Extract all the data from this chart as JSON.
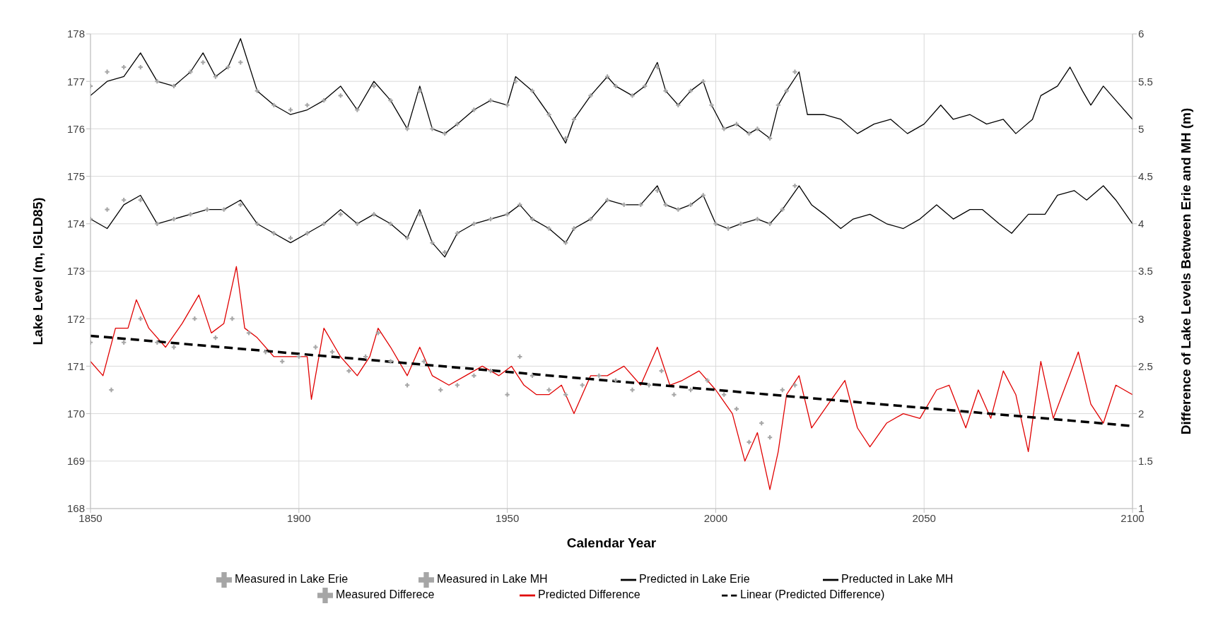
{
  "chart_data": {
    "type": "line",
    "xlabel": "Calendar Year",
    "ylabel": "Lake Level (m, IGLD85)",
    "y2label": "Difference of Lake Levels Between Erie and MH (m)",
    "xlim": [
      1850,
      2100
    ],
    "xticks": [
      1850,
      1900,
      1950,
      2000,
      2050,
      2100
    ],
    "ylim": [
      168,
      178
    ],
    "yticks": [
      168,
      169,
      170,
      171,
      172,
      173,
      174,
      175,
      176,
      177,
      178
    ],
    "y2lim": [
      1,
      6
    ],
    "y2ticks": [
      1,
      1.5,
      2,
      2.5,
      3,
      3.5,
      4,
      4.5,
      5,
      5.5,
      6
    ],
    "grid": true,
    "legend": "bottom",
    "series": [
      {
        "name": "Measured in Lake Erie",
        "type": "scatter",
        "marker": "cross",
        "color": "#a6a6a6",
        "x": [
          1850,
          1854,
          1858,
          1862,
          1866,
          1870,
          1874,
          1878,
          1882,
          1886,
          1890,
          1894,
          1898,
          1902,
          1906,
          1910,
          1914,
          1918,
          1922,
          1926,
          1929,
          1932,
          1935,
          1938,
          1942,
          1946,
          1950,
          1953,
          1956,
          1960,
          1964,
          1966,
          1970,
          1974,
          1978,
          1982,
          1986,
          1988,
          1991,
          1994,
          1997,
          2000,
          2003,
          2006,
          2010,
          2013,
          2016,
          2019
        ],
        "values": [
          174.1,
          174.3,
          174.5,
          174.5,
          174.0,
          174.1,
          174.2,
          174.3,
          174.3,
          174.4,
          174.0,
          173.8,
          173.7,
          173.8,
          174.0,
          174.2,
          174.0,
          174.2,
          174.0,
          173.7,
          174.2,
          173.6,
          173.4,
          173.8,
          174.0,
          174.1,
          174.2,
          174.4,
          174.1,
          173.9,
          173.6,
          173.9,
          174.1,
          174.5,
          174.4,
          174.4,
          174.7,
          174.4,
          174.3,
          174.4,
          174.6,
          174.0,
          173.9,
          174.0,
          174.1,
          174.0,
          174.3,
          174.8
        ]
      },
      {
        "name": "Measured in Lake MH",
        "type": "scatter",
        "marker": "cross",
        "color": "#a6a6a6",
        "x": [
          1850,
          1854,
          1858,
          1862,
          1866,
          1870,
          1874,
          1877,
          1880,
          1883,
          1886,
          1890,
          1894,
          1898,
          1902,
          1906,
          1910,
          1914,
          1918,
          1922,
          1926,
          1929,
          1932,
          1935,
          1938,
          1942,
          1946,
          1950,
          1952,
          1956,
          1960,
          1964,
          1966,
          1970,
          1974,
          1976,
          1980,
          1983,
          1986,
          1988,
          1991,
          1994,
          1997,
          1999,
          2002,
          2005,
          2008,
          2010,
          2013,
          2015,
          2017,
          2019
        ],
        "values": [
          176.9,
          177.2,
          177.3,
          177.3,
          177.0,
          176.9,
          177.2,
          177.4,
          177.1,
          177.3,
          177.4,
          176.8,
          176.5,
          176.4,
          176.5,
          176.6,
          176.7,
          176.4,
          176.9,
          176.6,
          176.0,
          176.8,
          176.0,
          175.9,
          176.1,
          176.4,
          176.6,
          176.5,
          177.0,
          176.8,
          176.3,
          175.8,
          176.2,
          176.7,
          177.1,
          176.9,
          176.7,
          176.9,
          177.3,
          176.8,
          176.5,
          176.8,
          177.0,
          176.5,
          176.0,
          176.1,
          175.9,
          176.0,
          175.8,
          176.5,
          176.8,
          177.2
        ]
      },
      {
        "name": "Predicted in Lake Erie",
        "color": "#000000",
        "x": [
          1850,
          1854,
          1858,
          1862,
          1866,
          1870,
          1874,
          1878,
          1882,
          1886,
          1890,
          1894,
          1898,
          1902,
          1906,
          1910,
          1914,
          1918,
          1922,
          1926,
          1929,
          1932,
          1935,
          1938,
          1942,
          1946,
          1950,
          1953,
          1956,
          1960,
          1964,
          1966,
          1970,
          1974,
          1978,
          1982,
          1986,
          1988,
          1991,
          1994,
          1997,
          2000,
          2003,
          2006,
          2010,
          2013,
          2016,
          2020,
          2023,
          2026,
          2030,
          2033,
          2037,
          2041,
          2045,
          2049,
          2053,
          2057,
          2061,
          2064,
          2068,
          2071,
          2075,
          2079,
          2082,
          2086,
          2089,
          2093,
          2096,
          2100
        ],
        "values": [
          174.1,
          173.9,
          174.4,
          174.6,
          174.0,
          174.1,
          174.2,
          174.3,
          174.3,
          174.5,
          174.0,
          173.8,
          173.6,
          173.8,
          174.0,
          174.3,
          174.0,
          174.2,
          174.0,
          173.7,
          174.3,
          173.6,
          173.3,
          173.8,
          174.0,
          174.1,
          174.2,
          174.4,
          174.1,
          173.9,
          173.6,
          173.9,
          174.1,
          174.5,
          174.4,
          174.4,
          174.8,
          174.4,
          174.3,
          174.4,
          174.6,
          174.0,
          173.9,
          174.0,
          174.1,
          174.0,
          174.3,
          174.8,
          174.4,
          174.2,
          173.9,
          174.1,
          174.2,
          174.0,
          173.9,
          174.1,
          174.4,
          174.1,
          174.3,
          174.3,
          174.0,
          173.8,
          174.2,
          174.2,
          174.6,
          174.7,
          174.5,
          174.8,
          174.5,
          174.0
        ]
      },
      {
        "name": "Preducted in Lake MH",
        "color": "#000000",
        "x": [
          1850,
          1854,
          1858,
          1862,
          1866,
          1870,
          1874,
          1877,
          1880,
          1883,
          1886,
          1890,
          1894,
          1898,
          1902,
          1906,
          1910,
          1914,
          1918,
          1922,
          1926,
          1929,
          1932,
          1935,
          1938,
          1942,
          1946,
          1950,
          1952,
          1956,
          1960,
          1964,
          1966,
          1970,
          1974,
          1976,
          1980,
          1983,
          1986,
          1988,
          1991,
          1994,
          1997,
          1999,
          2002,
          2005,
          2008,
          2010,
          2013,
          2015,
          2017,
          2020,
          2022,
          2026,
          2030,
          2034,
          2038,
          2042,
          2046,
          2050,
          2054,
          2057,
          2061,
          2065,
          2069,
          2072,
          2076,
          2078,
          2082,
          2085,
          2088,
          2090,
          2093,
          2096,
          2100
        ],
        "values": [
          176.7,
          177.0,
          177.1,
          177.6,
          177.0,
          176.9,
          177.2,
          177.6,
          177.1,
          177.3,
          177.9,
          176.8,
          176.5,
          176.3,
          176.4,
          176.6,
          176.9,
          176.4,
          177.0,
          176.6,
          176.0,
          176.9,
          176.0,
          175.9,
          176.1,
          176.4,
          176.6,
          176.5,
          177.1,
          176.8,
          176.3,
          175.7,
          176.2,
          176.7,
          177.1,
          176.9,
          176.7,
          176.9,
          177.4,
          176.8,
          176.5,
          176.8,
          177.0,
          176.5,
          176.0,
          176.1,
          175.9,
          176.0,
          175.8,
          176.5,
          176.8,
          177.2,
          176.3,
          176.3,
          176.2,
          175.9,
          176.1,
          176.2,
          175.9,
          176.1,
          176.5,
          176.2,
          176.3,
          176.1,
          176.2,
          175.9,
          176.2,
          176.7,
          176.9,
          177.3,
          176.8,
          176.5,
          176.9,
          176.6,
          176.2
        ]
      },
      {
        "name": "Measured Differece",
        "type": "scatter",
        "marker": "cross",
        "axis": "y2",
        "color": "#a6a6a6",
        "x": [
          1850,
          1855,
          1858,
          1862,
          1866,
          1870,
          1875,
          1880,
          1884,
          1888,
          1892,
          1896,
          1900,
          1904,
          1908,
          1912,
          1916,
          1919,
          1922,
          1926,
          1930,
          1934,
          1938,
          1942,
          1946,
          1950,
          1953,
          1956,
          1960,
          1964,
          1968,
          1972,
          1976,
          1980,
          1984,
          1987,
          1990,
          1994,
          1998,
          2002,
          2005,
          2008,
          2011,
          2013,
          2016,
          2019
        ],
        "values": [
          2.75,
          2.25,
          2.75,
          3.0,
          2.75,
          2.7,
          3.0,
          2.8,
          3.0,
          2.85,
          2.65,
          2.55,
          2.6,
          2.7,
          2.65,
          2.45,
          2.6,
          2.85,
          2.55,
          2.3,
          2.55,
          2.25,
          2.3,
          2.4,
          2.45,
          2.2,
          2.6,
          2.4,
          2.25,
          2.2,
          2.3,
          2.4,
          2.35,
          2.25,
          2.3,
          2.45,
          2.2,
          2.25,
          2.35,
          2.2,
          2.05,
          1.7,
          1.9,
          1.75,
          2.25,
          2.3
        ]
      },
      {
        "name": "Predicted Difference",
        "axis": "y2",
        "color": "#e00000",
        "x": [
          1850,
          1853,
          1856,
          1859,
          1861,
          1864,
          1868,
          1872,
          1876,
          1879,
          1882,
          1885,
          1887,
          1890,
          1894,
          1898,
          1902,
          1903,
          1906,
          1910,
          1914,
          1917,
          1919,
          1922,
          1926,
          1929,
          1932,
          1936,
          1940,
          1944,
          1948,
          1951,
          1954,
          1957,
          1960,
          1963,
          1966,
          1970,
          1974,
          1978,
          1982,
          1986,
          1989,
          1992,
          1996,
          2000,
          2004,
          2007,
          2010,
          2013,
          2015,
          2017,
          2020,
          2023,
          2027,
          2031,
          2034,
          2037,
          2041,
          2045,
          2049,
          2053,
          2056,
          2060,
          2063,
          2066,
          2069,
          2072,
          2075,
          2078,
          2081,
          2084,
          2087,
          2090,
          2093,
          2096,
          2100
        ],
        "values": [
          2.55,
          2.4,
          2.9,
          2.9,
          3.2,
          2.9,
          2.7,
          2.95,
          3.25,
          2.85,
          2.95,
          3.55,
          2.9,
          2.8,
          2.6,
          2.6,
          2.6,
          2.15,
          2.9,
          2.6,
          2.4,
          2.6,
          2.9,
          2.7,
          2.4,
          2.7,
          2.4,
          2.3,
          2.4,
          2.5,
          2.4,
          2.5,
          2.3,
          2.2,
          2.2,
          2.3,
          2.0,
          2.4,
          2.4,
          2.5,
          2.3,
          2.7,
          2.3,
          2.35,
          2.45,
          2.25,
          2.0,
          1.5,
          1.8,
          1.2,
          1.6,
          2.2,
          2.4,
          1.85,
          2.1,
          2.35,
          1.85,
          1.65,
          1.9,
          2.0,
          1.95,
          2.25,
          2.3,
          1.85,
          2.25,
          1.95,
          2.45,
          2.2,
          1.6,
          2.55,
          1.95,
          2.3,
          2.65,
          2.1,
          1.9,
          2.3,
          2.2
        ]
      },
      {
        "name": "Linear (Predicted Difference)",
        "axis": "y2",
        "line_style": "dashed",
        "color": "#000000",
        "x": [
          1850,
          2100
        ],
        "values": [
          2.82,
          1.87
        ]
      }
    ]
  }
}
